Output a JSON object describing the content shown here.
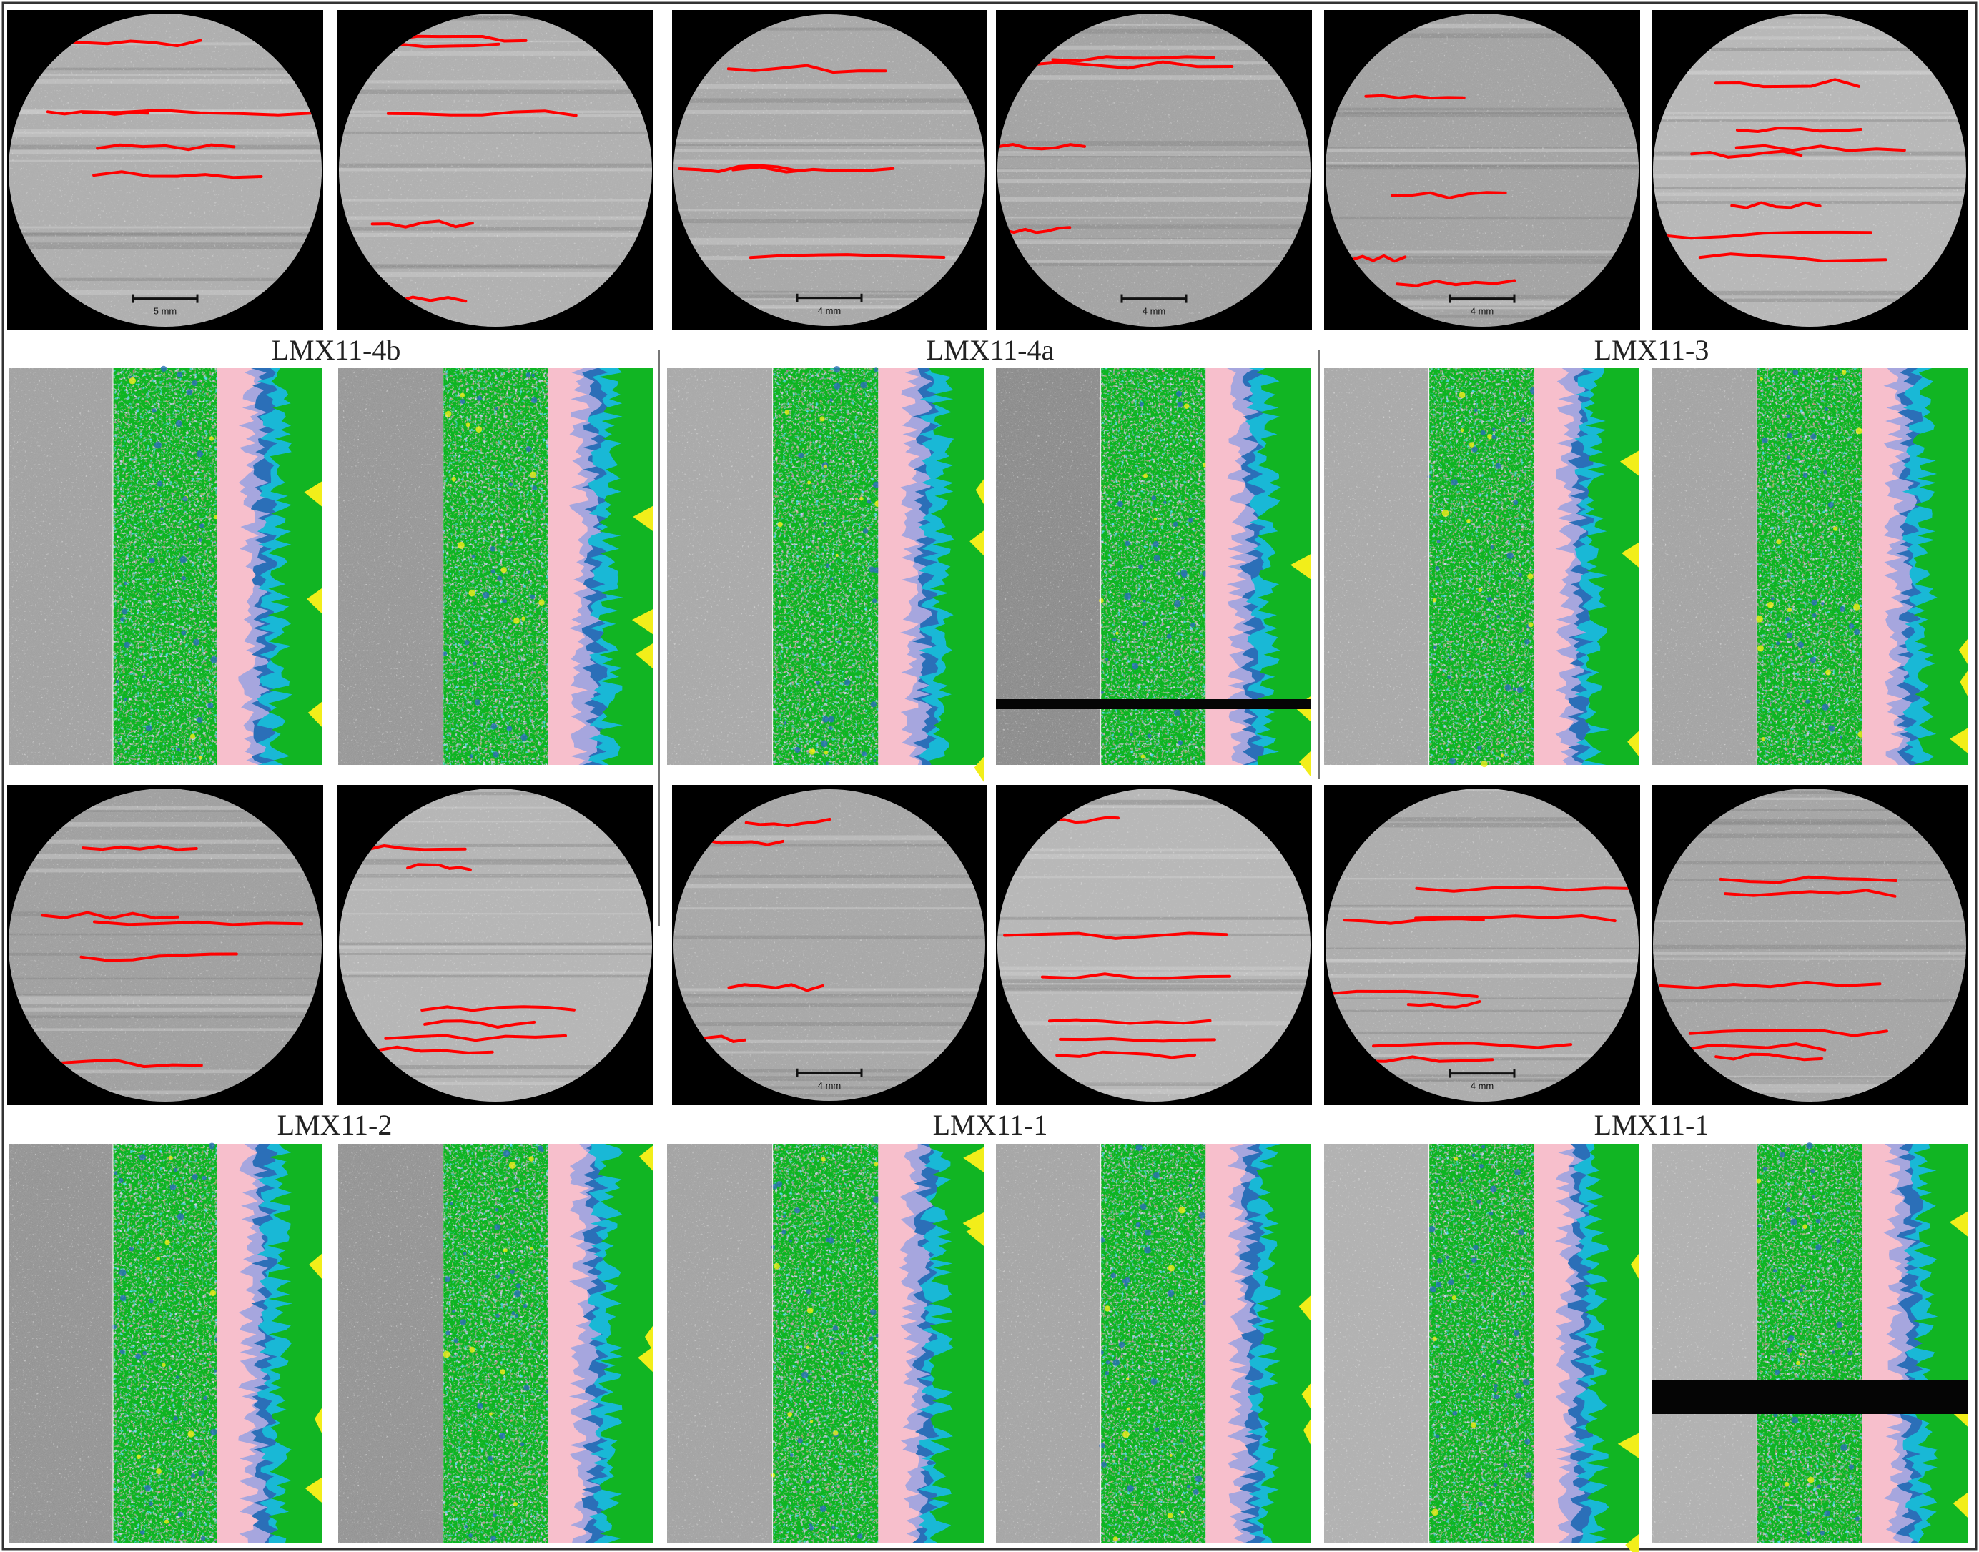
{
  "figure": {
    "labels": [
      "LMX11-4b",
      "LMX11-4a",
      "LMX11-3",
      "LMX11-2",
      "LMX11-1",
      "LMX11-1"
    ],
    "scale_bars": [
      "5 mm",
      "4 mm",
      "4 mm",
      "4 mm",
      "4 mm",
      "4 mm"
    ],
    "colors": {
      "ct_background": "#000000",
      "fracture_trace": "#ff0000",
      "phase_pink": "#f7bfcc",
      "phase_green": "#11b523",
      "phase_cyan": "#19b8d6",
      "phase_lavender": "#a6a6de",
      "phase_blue": "#2b6fb8",
      "phase_yellow": "#f2ee1a",
      "phase_darkred": "#8b1a1a"
    }
  }
}
